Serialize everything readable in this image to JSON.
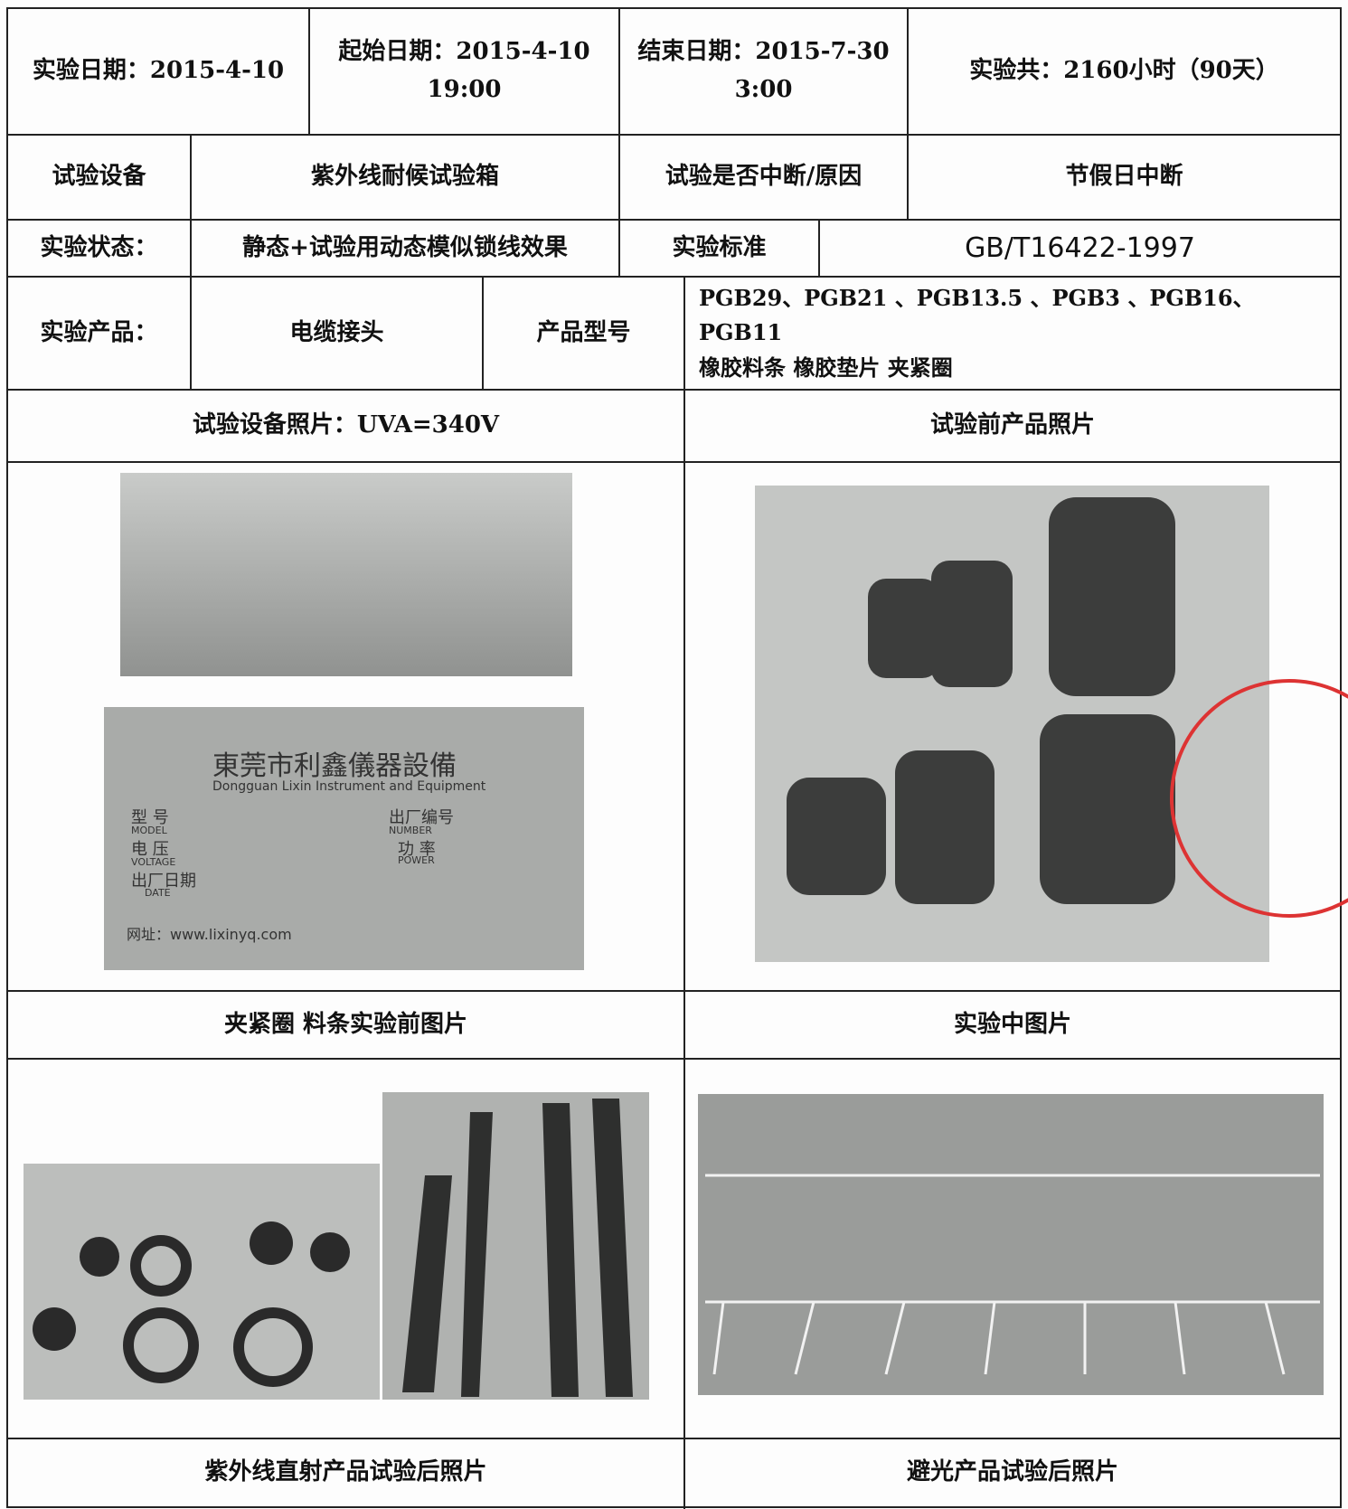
{
  "table": {
    "rows": [
      [
        "实验日期：2015-4-10",
        "起始日期：2015-4-10\n19:00",
        "结束日期：2015-7-30\n3:00",
        "实验共：2160小时（90天）"
      ],
      [
        "试验设备",
        "紫外线耐候试验箱",
        "试验是否中断/原因",
        "节假日中断"
      ],
      [
        "实验状态：",
        "静态+试验用动态模似锁线效果",
        "实验标准",
        "GB/T16422-1997"
      ],
      [
        "实验产品：",
        "电缆接头",
        "产品型号",
        "PGB29、PGB21 、PGB13.5 、PGB3 、PGB16、 PGB11\n橡胶料条  橡胶垫片  夹紧圈"
      ],
      [
        "试验设备照片：UVA=340V",
        "试验前产品照片"
      ],
      [
        "夹紧圈    料条实验前图片",
        "实验中图片"
      ],
      [
        "紫外线直射产品试验后照片",
        "避光产品试验后照片"
      ]
    ]
  },
  "nameplate": {
    "company": "東莞市利鑫儀器設備",
    "company_en": "Dongguan Lixin Instrument and Equipment",
    "model": "型  号",
    "model_en": "MODEL",
    "number": "出厂编号",
    "number_en": "NUMBER",
    "voltage": "电  压",
    "voltage_en": "VOLTAGE",
    "power": "功  率",
    "power_en": "POWER",
    "date": "出厂日期",
    "date_en": "DATE",
    "website": "网址：www.lixinyq.com"
  }
}
